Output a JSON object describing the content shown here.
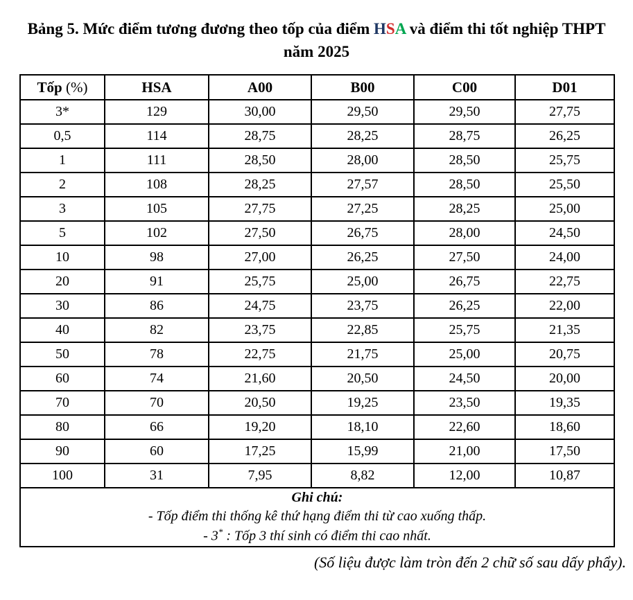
{
  "title": {
    "line1_prefix": "Bảng 5. Mức điểm tương đương theo tốp của điểm ",
    "hsa_h": "H",
    "hsa_s": "S",
    "hsa_a": "A",
    "line1_suffix": " và điểm thi tốt nghiệp THPT",
    "line2": "năm 2025"
  },
  "colors": {
    "hsa_h": "#1f3864",
    "hsa_s": "#d22b2b",
    "hsa_a": "#00a651",
    "border": "#000000",
    "text": "#000000",
    "background": "#ffffff"
  },
  "table": {
    "header_col0": {
      "bold": "Tốp",
      "unit": "(%)"
    },
    "headers": [
      "HSA",
      "A00",
      "B00",
      "C00",
      "D01"
    ],
    "rows": [
      [
        "3*",
        "129",
        "30,00",
        "29,50",
        "29,50",
        "27,75"
      ],
      [
        "0,5",
        "114",
        "28,75",
        "28,25",
        "28,75",
        "26,25"
      ],
      [
        "1",
        "111",
        "28,50",
        "28,00",
        "28,50",
        "25,75"
      ],
      [
        "2",
        "108",
        "28,25",
        "27,57",
        "28,50",
        "25,50"
      ],
      [
        "3",
        "105",
        "27,75",
        "27,25",
        "28,25",
        "25,00"
      ],
      [
        "5",
        "102",
        "27,50",
        "26,75",
        "28,00",
        "24,50"
      ],
      [
        "10",
        "98",
        "27,00",
        "26,25",
        "27,50",
        "24,00"
      ],
      [
        "20",
        "91",
        "25,75",
        "25,00",
        "26,75",
        "22,75"
      ],
      [
        "30",
        "86",
        "24,75",
        "23,75",
        "26,25",
        "22,00"
      ],
      [
        "40",
        "82",
        "23,75",
        "22,85",
        "25,75",
        "21,35"
      ],
      [
        "50",
        "78",
        "22,75",
        "21,75",
        "25,00",
        "20,75"
      ],
      [
        "60",
        "74",
        "21,60",
        "20,50",
        "24,50",
        "20,00"
      ],
      [
        "70",
        "70",
        "20,50",
        "19,25",
        "23,50",
        "19,35"
      ],
      [
        "80",
        "66",
        "19,20",
        "18,10",
        "22,60",
        "18,60"
      ],
      [
        "90",
        "60",
        "17,25",
        "15,99",
        "21,00",
        "17,50"
      ],
      [
        "100",
        "31",
        "7,95",
        "8,82",
        "12,00",
        "10,87"
      ]
    ]
  },
  "notes": {
    "heading": "Ghi chú:",
    "line1": "- Tốp điểm thi thống kê thứ hạng điểm thi từ cao xuống thấp.",
    "line2_prefix": "- 3",
    "line2_sup": "*",
    "line2_suffix": " : Tốp 3 thí sinh có điểm thi cao nhất."
  },
  "footer": "(Số liệu được làm tròn đến 2 chữ số sau dấy phẩy)."
}
